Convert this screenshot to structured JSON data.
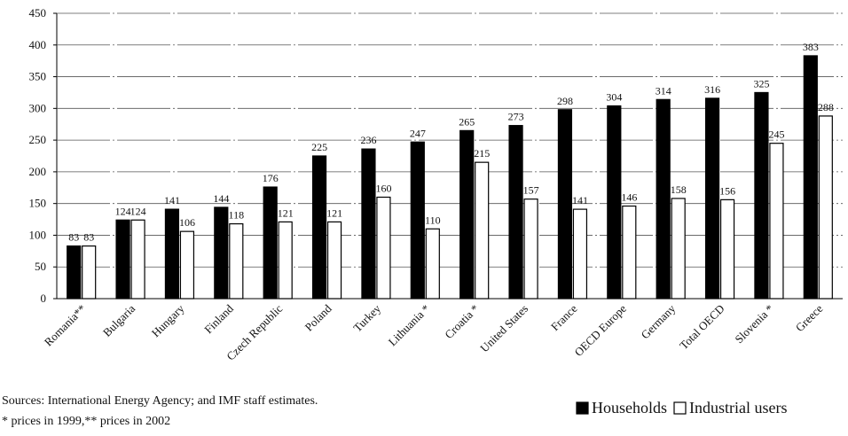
{
  "chart_data": {
    "type": "bar",
    "categories": [
      "Romania**",
      "Bulgaria",
      "Hungary",
      "Finland",
      "Czech Republic",
      "Poland",
      "Turkey",
      "Lithuania *",
      "Croatia *",
      "United States",
      "France",
      "OECD Europe",
      "Germany",
      "Total OECD",
      "Slovenia *",
      "Greece"
    ],
    "series": [
      {
        "name": "Households",
        "color": "#000000",
        "values": [
          83,
          124,
          141,
          144,
          176,
          225,
          236,
          247,
          265,
          273,
          298,
          304,
          314,
          316,
          325,
          383
        ]
      },
      {
        "name": "Industrial users",
        "color": "#ffffff",
        "values": [
          83,
          124,
          106,
          118,
          121,
          121,
          160,
          110,
          215,
          157,
          141,
          146,
          158,
          156,
          245,
          288
        ]
      }
    ],
    "ylim": [
      0,
      450
    ],
    "yticks": [
      0,
      50,
      100,
      150,
      200,
      250,
      300,
      350,
      400,
      450
    ],
    "grid": true,
    "legend": "bottom-right",
    "notes": [
      "Sources: International Energy Agency; and IMF staff estimates.",
      "* prices in 1999,** prices in 2002"
    ]
  }
}
